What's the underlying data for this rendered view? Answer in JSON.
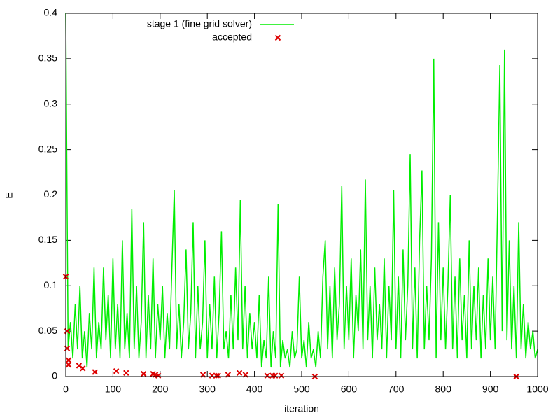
{
  "chart_data": {
    "type": "line",
    "xlabel": "iteration",
    "ylabel": "E",
    "xlim": [
      0,
      1000
    ],
    "xticks": [
      0,
      100,
      200,
      300,
      400,
      500,
      600,
      700,
      800,
      900,
      1000
    ],
    "ylim": [
      0,
      0.4
    ],
    "yticks": [
      0,
      0.05,
      0.1,
      0.15,
      0.2,
      0.25,
      0.3,
      0.35,
      0.4
    ],
    "legend": "top-center",
    "series": [
      {
        "name": "stage 1 (fine grid solver)",
        "color": "#00ee00",
        "mode": "lines",
        "x": [
          0,
          5,
          10,
          15,
          20,
          25,
          30,
          35,
          40,
          45,
          50,
          55,
          60,
          65,
          70,
          75,
          80,
          85,
          90,
          95,
          100,
          105,
          110,
          115,
          120,
          125,
          130,
          135,
          140,
          145,
          150,
          155,
          160,
          165,
          170,
          175,
          180,
          185,
          190,
          195,
          200,
          205,
          210,
          215,
          220,
          225,
          230,
          235,
          240,
          245,
          250,
          255,
          260,
          265,
          270,
          275,
          280,
          285,
          290,
          295,
          300,
          305,
          310,
          315,
          320,
          325,
          330,
          335,
          340,
          345,
          350,
          355,
          360,
          365,
          370,
          375,
          380,
          385,
          390,
          395,
          400,
          405,
          410,
          415,
          420,
          425,
          430,
          435,
          440,
          445,
          450,
          455,
          460,
          465,
          470,
          475,
          480,
          485,
          490,
          495,
          500,
          505,
          510,
          515,
          520,
          525,
          530,
          535,
          540,
          545,
          550,
          555,
          560,
          565,
          570,
          575,
          580,
          585,
          590,
          595,
          600,
          605,
          610,
          615,
          620,
          625,
          630,
          635,
          640,
          645,
          650,
          655,
          660,
          665,
          670,
          675,
          680,
          685,
          690,
          695,
          700,
          705,
          710,
          715,
          720,
          725,
          730,
          735,
          740,
          745,
          750,
          755,
          760,
          765,
          770,
          775,
          780,
          785,
          790,
          795,
          800,
          805,
          810,
          815,
          820,
          825,
          830,
          835,
          840,
          845,
          850,
          855,
          860,
          865,
          870,
          875,
          880,
          885,
          890,
          895,
          900,
          905,
          910,
          915,
          920,
          925,
          930,
          935,
          940,
          945,
          950,
          955,
          960,
          965,
          970,
          975,
          980,
          985,
          990,
          995,
          1000
        ],
        "values": [
          0.4,
          0.03,
          0.06,
          0.02,
          0.08,
          0.03,
          0.1,
          0.02,
          0.05,
          0.01,
          0.07,
          0.03,
          0.12,
          0.02,
          0.06,
          0.03,
          0.12,
          0.04,
          0.09,
          0.02,
          0.13,
          0.03,
          0.08,
          0.02,
          0.15,
          0.03,
          0.07,
          0.02,
          0.185,
          0.03,
          0.1,
          0.02,
          0.06,
          0.17,
          0.02,
          0.09,
          0.03,
          0.13,
          0.02,
          0.08,
          0.04,
          0.1,
          0.02,
          0.07,
          0.03,
          0.12,
          0.205,
          0.03,
          0.08,
          0.02,
          0.06,
          0.14,
          0.03,
          0.07,
          0.17,
          0.02,
          0.1,
          0.03,
          0.06,
          0.15,
          0.02,
          0.08,
          0.03,
          0.11,
          0.02,
          0.07,
          0.16,
          0.03,
          0.05,
          0.02,
          0.09,
          0.03,
          0.12,
          0.04,
          0.195,
          0.03,
          0.1,
          0.02,
          0.07,
          0.03,
          0.06,
          0.02,
          0.09,
          0.01,
          0.04,
          0.02,
          0.11,
          0.01,
          0.05,
          0.02,
          0.19,
          0.01,
          0.04,
          0.02,
          0.03,
          0.01,
          0.05,
          0.02,
          0.03,
          0.11,
          0.02,
          0.04,
          0.01,
          0.06,
          0.02,
          0.03,
          0.01,
          0.05,
          0.02,
          0.11,
          0.15,
          0.03,
          0.1,
          0.02,
          0.12,
          0.04,
          0.08,
          0.21,
          0.03,
          0.1,
          0.04,
          0.13,
          0.02,
          0.09,
          0.05,
          0.14,
          0.03,
          0.217,
          0.04,
          0.1,
          0.02,
          0.12,
          0.04,
          0.08,
          0.03,
          0.13,
          0.02,
          0.1,
          0.04,
          0.205,
          0.03,
          0.11,
          0.02,
          0.14,
          0.04,
          0.1,
          0.245,
          0.03,
          0.12,
          0.02,
          0.15,
          0.227,
          0.03,
          0.1,
          0.04,
          0.13,
          0.35,
          0.02,
          0.17,
          0.04,
          0.12,
          0.03,
          0.1,
          0.2,
          0.03,
          0.11,
          0.02,
          0.13,
          0.04,
          0.09,
          0.02,
          0.15,
          0.03,
          0.1,
          0.04,
          0.12,
          0.02,
          0.09,
          0.03,
          0.13,
          0.04,
          0.11,
          0.03,
          0.18,
          0.343,
          0.05,
          0.36,
          0.04,
          0.15,
          0.03,
          0.1,
          0.02,
          0.17,
          0.03,
          0.08,
          0.02,
          0.06,
          0.03,
          0.05,
          0.02,
          0.03
        ]
      },
      {
        "name": "accepted",
        "color": "#dd0000",
        "mode": "points",
        "x": [
          0,
          3,
          3,
          6,
          6,
          28,
          36,
          62,
          107,
          128,
          165,
          185,
          190,
          196,
          291,
          310,
          319,
          323,
          344,
          368,
          381,
          427,
          438,
          444,
          457,
          528,
          955
        ],
        "values": [
          0.11,
          0.05,
          0.031,
          0.018,
          0.013,
          0.012,
          0.009,
          0.005,
          0.006,
          0.004,
          0.003,
          0.003,
          0.002,
          0.001,
          0.002,
          0.001,
          0.001,
          0.001,
          0.002,
          0.004,
          0.002,
          0.001,
          0.001,
          0.001,
          0.001,
          0,
          0
        ]
      }
    ]
  }
}
